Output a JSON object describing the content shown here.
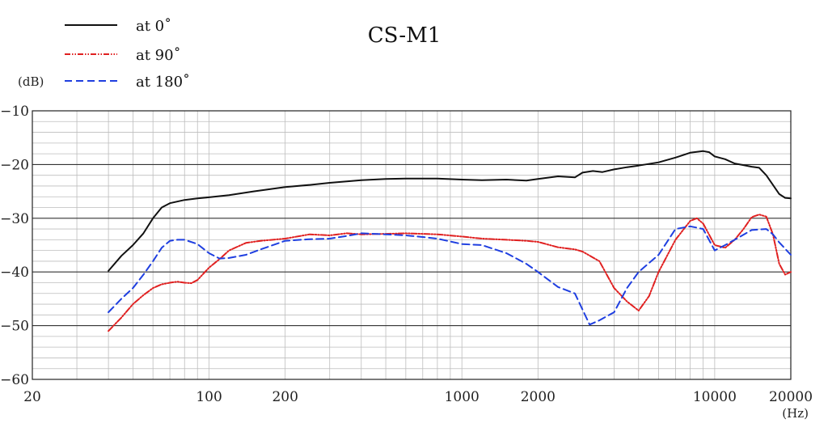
{
  "chart_data": {
    "type": "line",
    "title": "CS-M1",
    "ylabel": "(dB)",
    "xlabel": "(Hz)",
    "x_scale": "log",
    "xlim": [
      20,
      20000
    ],
    "ylim": [
      -60,
      -10
    ],
    "x_ticks": [
      {
        "value": 20,
        "label": "20"
      },
      {
        "value": 100,
        "label": "100"
      },
      {
        "value": 200,
        "label": "200"
      },
      {
        "value": 1000,
        "label": "1000"
      },
      {
        "value": 2000,
        "label": "2000"
      },
      {
        "value": 10000,
        "label": "10000"
      },
      {
        "value": 20000,
        "label": "20000"
      }
    ],
    "y_ticks": [
      {
        "value": -10,
        "label": "−10"
      },
      {
        "value": -20,
        "label": "−20"
      },
      {
        "value": -30,
        "label": "−30"
      },
      {
        "value": -40,
        "label": "−40"
      },
      {
        "value": -50,
        "label": "−50"
      },
      {
        "value": -60,
        "label": "−60"
      }
    ],
    "grid": true,
    "legend_position": "top-left",
    "series": [
      {
        "name": "at 0˚",
        "color": "#111111",
        "dash": "solid",
        "points": [
          [
            40,
            -39.8
          ],
          [
            45,
            -37.0
          ],
          [
            50,
            -35.0
          ],
          [
            55,
            -32.8
          ],
          [
            60,
            -30.0
          ],
          [
            65,
            -28.0
          ],
          [
            70,
            -27.2
          ],
          [
            80,
            -26.6
          ],
          [
            90,
            -26.3
          ],
          [
            100,
            -26.1
          ],
          [
            120,
            -25.7
          ],
          [
            150,
            -25.0
          ],
          [
            200,
            -24.2
          ],
          [
            250,
            -23.8
          ],
          [
            300,
            -23.4
          ],
          [
            400,
            -22.9
          ],
          [
            500,
            -22.7
          ],
          [
            600,
            -22.6
          ],
          [
            700,
            -22.6
          ],
          [
            800,
            -22.6
          ],
          [
            1000,
            -22.8
          ],
          [
            1200,
            -22.9
          ],
          [
            1500,
            -22.8
          ],
          [
            1800,
            -23.0
          ],
          [
            2000,
            -22.7
          ],
          [
            2400,
            -22.2
          ],
          [
            2800,
            -22.4
          ],
          [
            3000,
            -21.5
          ],
          [
            3300,
            -21.2
          ],
          [
            3600,
            -21.4
          ],
          [
            4000,
            -20.9
          ],
          [
            4500,
            -20.5
          ],
          [
            5000,
            -20.2
          ],
          [
            6000,
            -19.6
          ],
          [
            7000,
            -18.7
          ],
          [
            8000,
            -17.8
          ],
          [
            9000,
            -17.5
          ],
          [
            9500,
            -17.7
          ],
          [
            10000,
            -18.5
          ],
          [
            11000,
            -19.0
          ],
          [
            12000,
            -19.8
          ],
          [
            13000,
            -20.1
          ],
          [
            14000,
            -20.4
          ],
          [
            15000,
            -20.6
          ],
          [
            16000,
            -22.0
          ],
          [
            17000,
            -23.8
          ],
          [
            18000,
            -25.5
          ],
          [
            19000,
            -26.2
          ],
          [
            20000,
            -26.3
          ]
        ]
      },
      {
        "name": "at 90˚",
        "color": "#e02020",
        "dash": "dashdot",
        "points": [
          [
            40,
            -51.0
          ],
          [
            45,
            -48.5
          ],
          [
            50,
            -46.0
          ],
          [
            55,
            -44.3
          ],
          [
            60,
            -43.0
          ],
          [
            65,
            -42.3
          ],
          [
            70,
            -42.0
          ],
          [
            75,
            -41.8
          ],
          [
            80,
            -42.0
          ],
          [
            85,
            -42.1
          ],
          [
            90,
            -41.5
          ],
          [
            100,
            -39.2
          ],
          [
            110,
            -37.6
          ],
          [
            120,
            -36.0
          ],
          [
            140,
            -34.6
          ],
          [
            160,
            -34.2
          ],
          [
            200,
            -33.8
          ],
          [
            250,
            -33.0
          ],
          [
            300,
            -33.2
          ],
          [
            350,
            -32.8
          ],
          [
            400,
            -33.0
          ],
          [
            500,
            -32.9
          ],
          [
            600,
            -32.8
          ],
          [
            700,
            -32.9
          ],
          [
            800,
            -33.0
          ],
          [
            1000,
            -33.4
          ],
          [
            1200,
            -33.8
          ],
          [
            1500,
            -34.0
          ],
          [
            1800,
            -34.2
          ],
          [
            2000,
            -34.4
          ],
          [
            2400,
            -35.4
          ],
          [
            2800,
            -35.8
          ],
          [
            3000,
            -36.2
          ],
          [
            3500,
            -38.0
          ],
          [
            4000,
            -43.0
          ],
          [
            4500,
            -45.5
          ],
          [
            5000,
            -47.2
          ],
          [
            5500,
            -44.5
          ],
          [
            6000,
            -40.0
          ],
          [
            7000,
            -34.0
          ],
          [
            8000,
            -30.5
          ],
          [
            8500,
            -30.0
          ],
          [
            9000,
            -31.0
          ],
          [
            10000,
            -35.0
          ],
          [
            11000,
            -35.5
          ],
          [
            12000,
            -34.0
          ],
          [
            13000,
            -32.0
          ],
          [
            14000,
            -29.8
          ],
          [
            15000,
            -29.3
          ],
          [
            16000,
            -29.7
          ],
          [
            17000,
            -33.0
          ],
          [
            18000,
            -38.5
          ],
          [
            19000,
            -40.5
          ],
          [
            20000,
            -40.0
          ]
        ]
      },
      {
        "name": "at 180˚",
        "color": "#1f3fe0",
        "dash": "dashed",
        "points": [
          [
            40,
            -47.5
          ],
          [
            45,
            -45.0
          ],
          [
            50,
            -43.0
          ],
          [
            55,
            -40.5
          ],
          [
            60,
            -38.0
          ],
          [
            65,
            -35.5
          ],
          [
            70,
            -34.2
          ],
          [
            75,
            -34.0
          ],
          [
            80,
            -34.0
          ],
          [
            90,
            -34.8
          ],
          [
            100,
            -36.5
          ],
          [
            110,
            -37.5
          ],
          [
            120,
            -37.4
          ],
          [
            140,
            -36.8
          ],
          [
            160,
            -35.8
          ],
          [
            200,
            -34.2
          ],
          [
            250,
            -33.9
          ],
          [
            300,
            -33.8
          ],
          [
            350,
            -33.3
          ],
          [
            400,
            -32.8
          ],
          [
            500,
            -33.0
          ],
          [
            600,
            -33.2
          ],
          [
            700,
            -33.5
          ],
          [
            800,
            -33.8
          ],
          [
            1000,
            -34.8
          ],
          [
            1200,
            -35.0
          ],
          [
            1500,
            -36.5
          ],
          [
            1800,
            -38.5
          ],
          [
            2000,
            -40.0
          ],
          [
            2400,
            -42.8
          ],
          [
            2800,
            -44.0
          ],
          [
            3000,
            -47.0
          ],
          [
            3200,
            -49.8
          ],
          [
            3500,
            -49.0
          ],
          [
            4000,
            -47.5
          ],
          [
            4500,
            -43.0
          ],
          [
            5000,
            -40.0
          ],
          [
            6000,
            -36.8
          ],
          [
            7000,
            -32.0
          ],
          [
            8000,
            -31.5
          ],
          [
            9000,
            -32.0
          ],
          [
            10000,
            -36.0
          ],
          [
            11000,
            -35.0
          ],
          [
            12000,
            -34.0
          ],
          [
            14000,
            -32.2
          ],
          [
            16000,
            -32.0
          ],
          [
            17000,
            -33.0
          ],
          [
            18000,
            -34.5
          ],
          [
            20000,
            -36.8
          ]
        ]
      }
    ]
  }
}
